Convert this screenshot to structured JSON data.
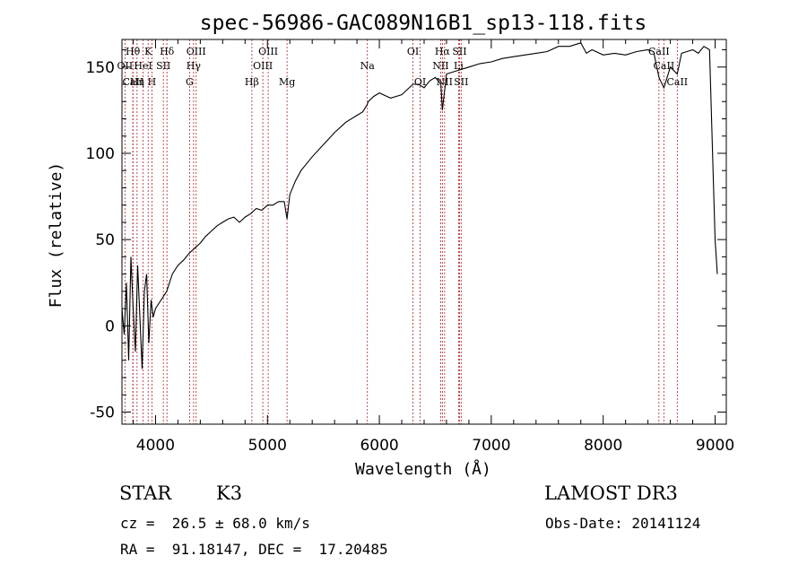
{
  "chart_data": {
    "type": "line",
    "title": "spec-56986-GAC089N16B1_sp13-118.fits",
    "xlabel": "Wavelength (Å)",
    "ylabel": "Flux (relative)",
    "xlim": [
      3700,
      9100
    ],
    "ylim": [
      -57,
      166
    ],
    "xticks": [
      4000,
      5000,
      6000,
      7000,
      8000,
      9000
    ],
    "yticks": [
      -50,
      0,
      50,
      100,
      150
    ],
    "line_color": "#000000",
    "marker_color": "#b22222",
    "series": [
      {
        "name": "flux",
        "x": [
          3700,
          3720,
          3740,
          3760,
          3780,
          3800,
          3820,
          3840,
          3860,
          3880,
          3900,
          3920,
          3940,
          3960,
          3980,
          4000,
          4050,
          4100,
          4150,
          4200,
          4250,
          4300,
          4350,
          4400,
          4450,
          4500,
          4550,
          4600,
          4650,
          4700,
          4750,
          4800,
          4850,
          4900,
          4950,
          5000,
          5050,
          5100,
          5150,
          5175,
          5200,
          5250,
          5300,
          5400,
          5500,
          5600,
          5700,
          5800,
          5850,
          5890,
          5900,
          5950,
          6000,
          6100,
          6200,
          6300,
          6350,
          6400,
          6450,
          6500,
          6550,
          6563,
          6600,
          6700,
          6800,
          6900,
          7000,
          7100,
          7200,
          7300,
          7400,
          7500,
          7600,
          7700,
          7800,
          7850,
          7900,
          8000,
          8100,
          8200,
          8300,
          8400,
          8450,
          8498,
          8542,
          8600,
          8662,
          8700,
          8800,
          8850,
          8900,
          8950,
          9000,
          9020
        ],
        "y": [
          10,
          -5,
          25,
          -20,
          40,
          10,
          -15,
          35,
          5,
          -25,
          20,
          30,
          -10,
          15,
          5,
          10,
          15,
          20,
          30,
          35,
          38,
          42,
          45,
          48,
          52,
          55,
          58,
          60,
          62,
          63,
          60,
          63,
          65,
          68,
          67,
          70,
          70,
          72,
          72,
          62,
          76,
          84,
          90,
          98,
          105,
          112,
          118,
          122,
          124,
          128,
          130,
          133,
          135,
          132,
          134,
          140,
          140,
          138,
          142,
          144,
          140,
          125,
          146,
          148,
          150,
          152,
          153,
          155,
          156,
          157,
          158,
          159,
          162,
          162,
          164,
          158,
          160,
          157,
          158,
          157,
          159,
          160,
          159,
          144,
          138,
          150,
          146,
          158,
          160,
          158,
          162,
          160,
          50,
          30
        ]
      }
    ],
    "line_markers": [
      {
        "label": "Hθ",
        "wavelength": 3797,
        "row": 1
      },
      {
        "label": "OII",
        "wavelength": 3727,
        "row": 2
      },
      {
        "label": "Hη",
        "wavelength": 3835,
        "row": 3
      },
      {
        "label": "CaII",
        "wavelength": 3799,
        "row": 3
      },
      {
        "label": "HeI",
        "wavelength": 3889,
        "row": 2
      },
      {
        "label": "K",
        "wavelength": 3934,
        "row": 1
      },
      {
        "label": "H",
        "wavelength": 3968,
        "row": 3
      },
      {
        "label": "SII",
        "wavelength": 4070,
        "row": 2
      },
      {
        "label": "Hδ",
        "wavelength": 4102,
        "row": 1
      },
      {
        "label": "OIII",
        "wavelength": 4363,
        "row": 1
      },
      {
        "label": "Hγ",
        "wavelength": 4340,
        "row": 2
      },
      {
        "label": "G",
        "wavelength": 4304,
        "row": 3
      },
      {
        "label": "Hβ",
        "wavelength": 4861,
        "row": 3
      },
      {
        "label": "OIII",
        "wavelength": 5007,
        "row": 1
      },
      {
        "label": "OIII",
        "wavelength": 4959,
        "row": 2
      },
      {
        "label": "Mg",
        "wavelength": 5175,
        "row": 3
      },
      {
        "label": "Na",
        "wavelength": 5893,
        "row": 2
      },
      {
        "label": "OI",
        "wavelength": 6300,
        "row": 1
      },
      {
        "label": "OI",
        "wavelength": 6364,
        "row": 3
      },
      {
        "label": "Hα",
        "wavelength": 6563,
        "row": 1
      },
      {
        "label": "NII",
        "wavelength": 6548,
        "row": 2
      },
      {
        "label": "NII",
        "wavelength": 6583,
        "row": 3
      },
      {
        "label": "SII",
        "wavelength": 6716,
        "row": 1
      },
      {
        "label": "Li",
        "wavelength": 6708,
        "row": 2
      },
      {
        "label": "SII",
        "wavelength": 6731,
        "row": 3
      },
      {
        "label": "CaII",
        "wavelength": 8498,
        "row": 1
      },
      {
        "label": "CaII",
        "wavelength": 8542,
        "row": 2
      },
      {
        "label": "CaII",
        "wavelength": 8662,
        "row": 3
      }
    ]
  },
  "info": {
    "object_class": "STAR",
    "subclass": "K3",
    "survey": "LAMOST DR3",
    "redshift": "cz =  26.5 ± 68.0 km/s",
    "obs_date": "Obs-Date: 20141124",
    "coords": "RA =  91.18147, DEC =  17.20485"
  }
}
